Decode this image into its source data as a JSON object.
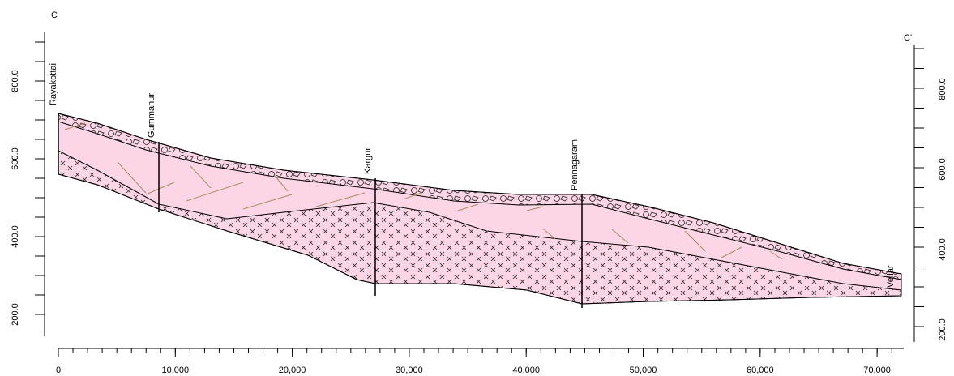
{
  "section": {
    "start_label": "C",
    "end_label": "C'"
  },
  "wells": [
    {
      "name": "Rayakottai"
    },
    {
      "name": "Gummanur"
    },
    {
      "name": "Kargur"
    },
    {
      "name": "Pennagaram"
    },
    {
      "name": "Vellar"
    }
  ],
  "x_axis": {
    "tick_labels": [
      "0",
      "10,000",
      "20,000",
      "30,000",
      "40,000",
      "50,000",
      "60,000",
      "70,000"
    ]
  },
  "left_axis": {
    "tick_labels": [
      "200.0",
      "400.0",
      "600.0",
      "800.0"
    ]
  },
  "right_axis": {
    "tick_labels": [
      "200.0",
      "400.0",
      "600.0",
      "800.0"
    ]
  }
}
